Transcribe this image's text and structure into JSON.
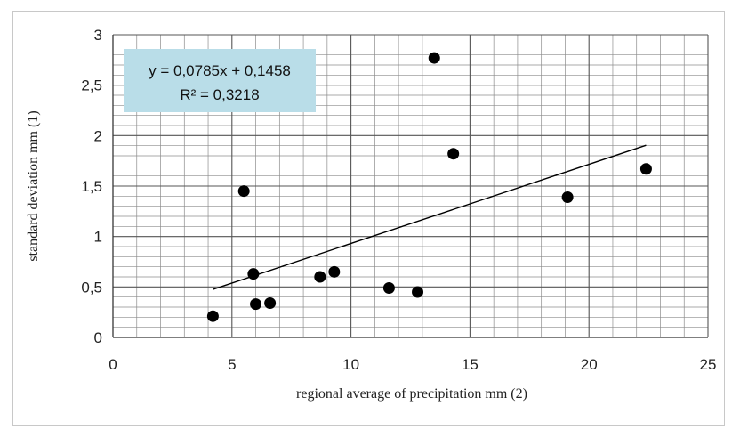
{
  "chart_data": {
    "type": "scatter",
    "xlabel": "regional average of precipitation mm (2)",
    "ylabel": "standard deviation mm (1)",
    "xlim": [
      0,
      25
    ],
    "ylim": [
      0,
      3
    ],
    "x_major_ticks": [
      "0",
      "5",
      "10",
      "15",
      "20",
      "25"
    ],
    "y_major_ticks": [
      "0",
      "0,5",
      "1",
      "1,5",
      "2",
      "2,5",
      "3"
    ],
    "x_major_step": 5,
    "x_minor_step": 1,
    "y_major_step": 0.5,
    "y_minor_step": 0.1,
    "grid": true,
    "points": [
      {
        "x": 4.2,
        "y": 0.21
      },
      {
        "x": 5.5,
        "y": 1.45
      },
      {
        "x": 5.9,
        "y": 0.63
      },
      {
        "x": 6.0,
        "y": 0.33
      },
      {
        "x": 6.6,
        "y": 0.34
      },
      {
        "x": 8.7,
        "y": 0.6
      },
      {
        "x": 9.3,
        "y": 0.65
      },
      {
        "x": 11.6,
        "y": 0.49
      },
      {
        "x": 12.8,
        "y": 0.45
      },
      {
        "x": 13.5,
        "y": 2.77
      },
      {
        "x": 14.3,
        "y": 1.82
      },
      {
        "x": 19.1,
        "y": 1.39
      },
      {
        "x": 22.4,
        "y": 1.67
      }
    ],
    "trendline": {
      "type": "linear",
      "slope": 0.0785,
      "intercept": 0.1458,
      "x_range": [
        4.2,
        22.4
      ],
      "equation_label": "y = 0,0785x + 0,1458",
      "r2_label": "R² = 0,3218"
    },
    "colors": {
      "marker": "#000000",
      "grid": "#8c8c8c",
      "equation_box": "#b9dde8"
    }
  }
}
